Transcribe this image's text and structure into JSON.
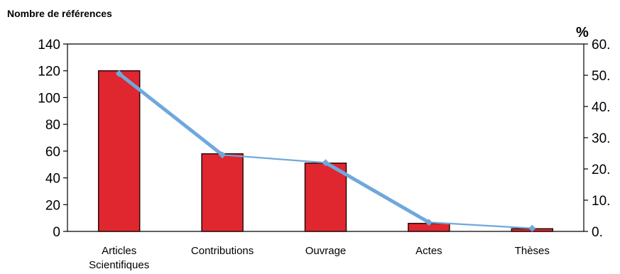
{
  "chart_data": {
    "type": "bar",
    "title": "Nombre de références",
    "y2label": "%",
    "categories": [
      [
        "Articles",
        "Scientifiques"
      ],
      [
        "Contributions"
      ],
      [
        "Ouvrage"
      ],
      [
        "Actes"
      ],
      [
        "Thèses"
      ]
    ],
    "series": [
      {
        "type": "bar",
        "axis": "left",
        "values": [
          120,
          58,
          51,
          6,
          2
        ]
      },
      {
        "type": "line",
        "axis": "right",
        "values": [
          50.5,
          24.5,
          22.0,
          2.9,
          1.0
        ]
      }
    ],
    "ylim": [
      0,
      140
    ],
    "yticks": [
      "0",
      "20",
      "40",
      "60",
      "80",
      "100",
      "120",
      "140"
    ],
    "y2lim": [
      0,
      60
    ],
    "y2ticks": [
      "0.",
      "10.",
      "20.",
      "30.",
      "40.",
      "50.",
      "60."
    ],
    "grid": false,
    "colors": {
      "bar": "#e0262f",
      "bar_edge": "#2a0a0a",
      "line": "#6fa8dc"
    }
  }
}
